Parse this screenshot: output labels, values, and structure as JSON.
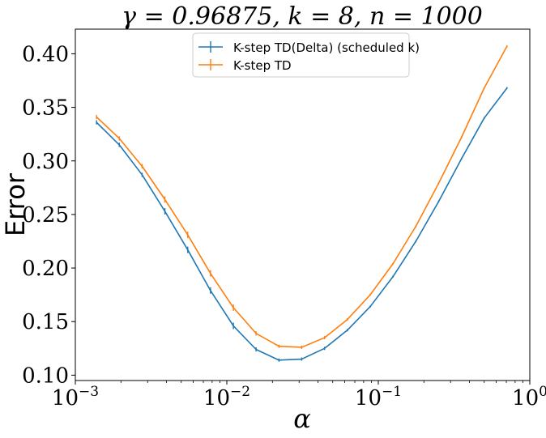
{
  "chart_data": {
    "type": "line",
    "title": "γ = 0.96875, k = 8, n = 1000",
    "xlabel": "α",
    "ylabel": "Error",
    "x_scale": "log",
    "xlim": [
      0.001,
      1
    ],
    "ylim": [
      0.095,
      0.423
    ],
    "x_ticks": [
      {
        "base": "10",
        "exp": "−3",
        "value": 0.001
      },
      {
        "base": "10",
        "exp": "−2",
        "value": 0.01
      },
      {
        "base": "10",
        "exp": "−1",
        "value": 0.1
      },
      {
        "base": "10",
        "exp": "0",
        "value": 1
      }
    ],
    "y_ticks": [
      {
        "label": "0.10",
        "value": 0.1
      },
      {
        "label": "0.15",
        "value": 0.15
      },
      {
        "label": "0.20",
        "value": 0.2
      },
      {
        "label": "0.25",
        "value": 0.25
      },
      {
        "label": "0.30",
        "value": 0.3
      },
      {
        "label": "0.35",
        "value": 0.35
      },
      {
        "label": "0.40",
        "value": 0.4
      }
    ],
    "grid": false,
    "legend_position": "top-center",
    "x": [
      0.00138,
      0.00195,
      0.00276,
      0.0039,
      0.00552,
      0.0078,
      0.01105,
      0.0156,
      0.0221,
      0.0312,
      0.0442,
      0.0625,
      0.0884,
      0.125,
      0.177,
      0.25,
      0.354,
      0.5,
      0.707
    ],
    "series": [
      {
        "name": "K-step TD(Delta) (scheduled k)",
        "color": "#1f77b4",
        "values": [
          0.336,
          0.315,
          0.287,
          0.253,
          0.217,
          0.179,
          0.146,
          0.124,
          0.114,
          0.115,
          0.125,
          0.142,
          0.164,
          0.192,
          0.225,
          0.262,
          0.302,
          0.34,
          0.368
        ],
        "errors": [
          0.002,
          0.002,
          0.002,
          0.003,
          0.003,
          0.003,
          0.003,
          0.002,
          0.0015,
          0.0015,
          0.0015,
          0.0012,
          0.001,
          0.001,
          0.001,
          0.001,
          0.001,
          0.001,
          0.001
        ]
      },
      {
        "name": "K-step TD",
        "color": "#ff7f0e",
        "values": [
          0.341,
          0.321,
          0.295,
          0.264,
          0.231,
          0.195,
          0.163,
          0.139,
          0.127,
          0.126,
          0.135,
          0.152,
          0.175,
          0.204,
          0.239,
          0.279,
          0.322,
          0.368,
          0.407
        ],
        "errors": [
          0.002,
          0.002,
          0.002,
          0.003,
          0.003,
          0.003,
          0.003,
          0.002,
          0.0015,
          0.0015,
          0.0015,
          0.0012,
          0.001,
          0.001,
          0.001,
          0.001,
          0.001,
          0.001,
          0.001
        ]
      }
    ]
  }
}
